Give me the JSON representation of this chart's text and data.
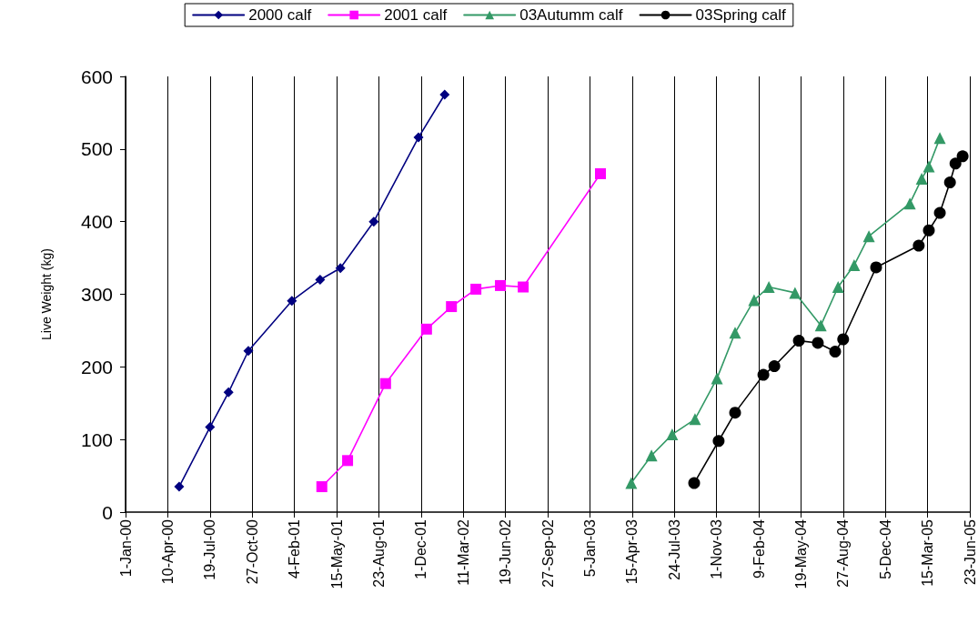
{
  "chart_data": {
    "type": "line",
    "ylabel": "Live Weight (kg)",
    "xlim": [
      "2000-01-01",
      "2005-06-23"
    ],
    "xticks": [
      {
        "value": "2000-01-01",
        "label": "1-Jan-00"
      },
      {
        "value": "2000-04-10",
        "label": "10-Apr-00"
      },
      {
        "value": "2000-07-19",
        "label": "19-Jul-00"
      },
      {
        "value": "2000-10-27",
        "label": "27-Oct-00"
      },
      {
        "value": "2001-02-04",
        "label": "4-Feb-01"
      },
      {
        "value": "2001-05-15",
        "label": "15-May-01"
      },
      {
        "value": "2001-08-23",
        "label": "23-Aug-01"
      },
      {
        "value": "2001-12-01",
        "label": "1-Dec-01"
      },
      {
        "value": "2002-03-11",
        "label": "11-Mar-02"
      },
      {
        "value": "2002-06-19",
        "label": "19-Jun-02"
      },
      {
        "value": "2002-09-27",
        "label": "27-Sep-02"
      },
      {
        "value": "2003-01-05",
        "label": "5-Jan-03"
      },
      {
        "value": "2003-04-15",
        "label": "15-Apr-03"
      },
      {
        "value": "2003-07-24",
        "label": "24-Jul-03"
      },
      {
        "value": "2003-11-01",
        "label": "1-Nov-03"
      },
      {
        "value": "2004-02-09",
        "label": "9-Feb-04"
      },
      {
        "value": "2004-05-19",
        "label": "19-May-04"
      },
      {
        "value": "2004-08-27",
        "label": "27-Aug-04"
      },
      {
        "value": "2004-12-05",
        "label": "5-Dec-04"
      },
      {
        "value": "2005-03-15",
        "label": "15-Mar-05"
      },
      {
        "value": "2005-06-23",
        "label": "23-Jun-05"
      }
    ],
    "ylim": [
      0,
      600
    ],
    "yticks": [
      0,
      100,
      200,
      300,
      400,
      500,
      600
    ],
    "grid": "x",
    "legend": "top",
    "line_style": "solid",
    "series": [
      {
        "name": "2000 calf",
        "color": "#000080",
        "marker": "diamond",
        "x": [
          "2000-05-07",
          "2000-07-19",
          "2000-09-01",
          "2000-10-18",
          "2001-01-29",
          "2001-04-06",
          "2001-05-24",
          "2001-08-11",
          "2001-11-25",
          "2002-01-26"
        ],
        "values": [
          35,
          117,
          165,
          222,
          291,
          320,
          336,
          400,
          516,
          575
        ]
      },
      {
        "name": "2001 calf",
        "color": "#ff00ff",
        "marker": "square",
        "x": [
          "2001-04-10",
          "2001-06-10",
          "2001-09-08",
          "2001-12-14",
          "2002-02-11",
          "2002-04-10",
          "2002-06-07",
          "2002-07-31",
          "2003-01-30"
        ],
        "values": [
          35,
          71,
          177,
          252,
          283,
          307,
          312,
          310,
          466
        ]
      },
      {
        "name": "03Autumm calf",
        "color": "#339966",
        "marker": "triangle",
        "x": [
          "2003-04-13",
          "2003-05-31",
          "2003-07-19",
          "2003-09-11",
          "2003-11-02",
          "2003-12-15",
          "2004-01-29",
          "2004-03-04",
          "2004-05-05",
          "2004-07-05",
          "2004-08-15",
          "2004-09-22",
          "2004-10-27",
          "2005-02-01",
          "2005-03-01",
          "2005-03-18",
          "2005-04-13"
        ],
        "values": [
          40,
          78,
          107,
          128,
          184,
          247,
          292,
          310,
          302,
          257,
          310,
          340,
          380,
          425,
          459,
          476,
          515
        ]
      },
      {
        "name": "03Spring calf",
        "color": "#000000",
        "marker": "circle",
        "x": [
          "2003-09-09",
          "2003-11-06",
          "2003-12-15",
          "2004-02-20",
          "2004-03-17",
          "2004-05-14",
          "2004-06-28",
          "2004-08-08",
          "2004-08-27",
          "2004-11-13",
          "2005-02-22",
          "2005-03-18",
          "2005-04-13",
          "2005-05-07",
          "2005-05-20",
          "2005-06-06"
        ],
        "values": [
          40,
          98,
          137,
          189,
          201,
          236,
          233,
          221,
          238,
          337,
          367,
          388,
          412,
          454,
          480,
          490
        ]
      }
    ]
  }
}
